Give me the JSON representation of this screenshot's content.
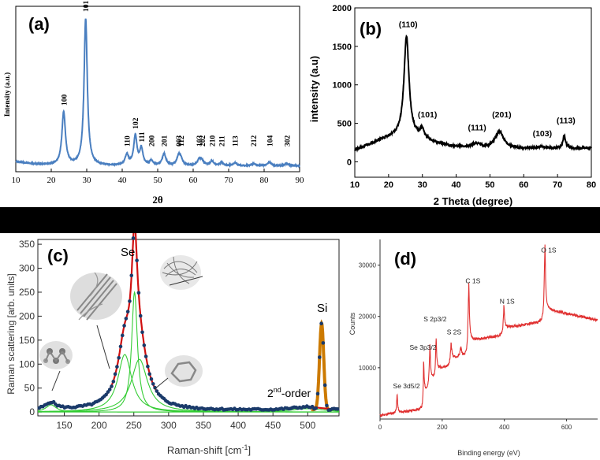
{
  "colors": {
    "a_line": "#4a7fc0",
    "b_line": "#000000",
    "c_fit": "#d01010",
    "c_comp": "#33cc33",
    "c_si": "#cc7a00",
    "c_dots": "#1a3a6a",
    "d_line": "#e03030"
  },
  "chart_data": [
    {
      "type": "line",
      "panel": "(a)",
      "xlabel": "2θ",
      "ylabel": "Intensity (a.u.)",
      "xlim": [
        10,
        90
      ],
      "ylim": [
        0,
        100
      ],
      "xticks": [
        10,
        20,
        30,
        40,
        50,
        60,
        70,
        80,
        90
      ],
      "baseline": 4,
      "peaks": [
        {
          "x": 23.5,
          "h": 36,
          "w": 0.6,
          "label": "100"
        },
        {
          "x": 29.7,
          "h": 100,
          "w": 0.55,
          "label": "101"
        },
        {
          "x": 41.3,
          "h": 7,
          "w": 0.6,
          "label": "110"
        },
        {
          "x": 43.7,
          "h": 20,
          "w": 0.55,
          "label": "102"
        },
        {
          "x": 45.4,
          "h": 11,
          "w": 0.55,
          "label": "111"
        },
        {
          "x": 48.2,
          "h": 3,
          "w": 0.6,
          "label": "200"
        },
        {
          "x": 51.8,
          "h": 8,
          "w": 0.6,
          "label": "201"
        },
        {
          "x": 55.9,
          "h": 6,
          "w": 0.6,
          "label": "003"
        },
        {
          "x": 56.5,
          "h": 4,
          "w": 0.6,
          "label": "112"
        },
        {
          "x": 61.7,
          "h": 4,
          "w": 0.6,
          "label": "103"
        },
        {
          "x": 62.5,
          "h": 3,
          "w": 0.6,
          "label": "202"
        },
        {
          "x": 65.3,
          "h": 3,
          "w": 0.6,
          "label": "210"
        },
        {
          "x": 68.0,
          "h": 2,
          "w": 0.6,
          "label": "211"
        },
        {
          "x": 71.8,
          "h": 2,
          "w": 0.6,
          "label": "113"
        },
        {
          "x": 77.0,
          "h": 1.5,
          "w": 0.6,
          "label": "212"
        },
        {
          "x": 81.5,
          "h": 2.5,
          "w": 0.6,
          "label": "104"
        },
        {
          "x": 86.4,
          "h": 1.5,
          "w": 0.6,
          "label": "302"
        }
      ]
    },
    {
      "type": "line",
      "panel": "(b)",
      "xlabel": "2 Theta (degree)",
      "ylabel": "intensity (a.u)",
      "xlim": [
        10,
        80
      ],
      "ylim": [
        -200,
        2000
      ],
      "xticks": [
        10,
        20,
        30,
        40,
        50,
        60,
        70,
        80
      ],
      "yticks": [
        0,
        500,
        1000,
        1500,
        2000
      ],
      "peaks": [
        {
          "x": 25.3,
          "h": 1300,
          "w": 0.9,
          "label": "(110)"
        },
        {
          "x": 29.9,
          "h": 120,
          "w": 0.7,
          "label": "(101)"
        },
        {
          "x": 46.0,
          "h": 60,
          "w": 2.0,
          "label": "(111)"
        },
        {
          "x": 52.8,
          "h": 220,
          "w": 1.5,
          "label": "(201)"
        },
        {
          "x": 65.0,
          "h": 20,
          "w": 1.5,
          "label": "(103)"
        },
        {
          "x": 72.0,
          "h": 160,
          "w": 0.5,
          "label": "(113)"
        }
      ]
    },
    {
      "type": "line",
      "panel": "(c)",
      "xlabel": "Raman-shift [cm⁻¹]",
      "ylabel": "Raman scattering [arb. units]",
      "xlim": [
        112,
        545
      ],
      "ylim": [
        -8,
        360
      ],
      "xticks": [
        150,
        200,
        250,
        300,
        350,
        400,
        450,
        500
      ],
      "yticks": [
        0,
        50,
        100,
        150,
        200,
        250,
        300,
        350
      ],
      "components": [
        {
          "x": 237,
          "h": 120,
          "w": 12
        },
        {
          "x": 251,
          "h": 250,
          "w": 5
        },
        {
          "x": 258,
          "h": 110,
          "w": 14
        },
        {
          "x": 131,
          "h": 15,
          "w": 9
        },
        {
          "x": 500,
          "h": 7,
          "w": 28
        }
      ],
      "si_peak": {
        "x": 520,
        "h": 180,
        "w": 3
      },
      "labels": {
        "se": "Se",
        "si": "Si",
        "second_order": "2nd-order"
      }
    },
    {
      "type": "line",
      "panel": "(d)",
      "xlabel": "Binding energy (eV)",
      "ylabel": "Counts",
      "xlim": [
        0,
        700
      ],
      "ylim": [
        0,
        35000
      ],
      "xticks": [
        0,
        200,
        400,
        600
      ],
      "yticks": [
        10000,
        20000,
        30000
      ],
      "peak_labels": [
        {
          "x": 55,
          "text": "Se 3d5/2"
        },
        {
          "x": 160,
          "text": "Se 3p3/2"
        },
        {
          "x": 180,
          "text": "S 2p3/2"
        },
        {
          "x": 225,
          "text": "S 2S"
        },
        {
          "x": 285,
          "text": "C 1S"
        },
        {
          "x": 398,
          "text": "N 1S"
        },
        {
          "x": 530,
          "text": "O 1S"
        }
      ]
    }
  ],
  "panel_labels": {
    "a": "(a)",
    "b": "(b)",
    "c": "(c)",
    "d": "(d)"
  },
  "texts": {
    "a_xlabel": "2θ",
    "a_ylabel": "Intensity (a.u.)",
    "b_xlabel": "2 Theta (degree)",
    "b_ylabel": "intensity (a.u)",
    "c_ylabel": "Raman scattering [arb. units]",
    "c_se": "Se",
    "c_si": "Si",
    "c_2nd": "2",
    "c_2nd_sup": "nd",
    "c_2nd_rest": "-order",
    "c_xlabel_main": "Raman-shift [cm",
    "c_xlabel_sup": "-1",
    "c_xlabel_end": "]",
    "d_xlabel": "Binding energy (eV)",
    "d_ylabel": "Counts"
  }
}
